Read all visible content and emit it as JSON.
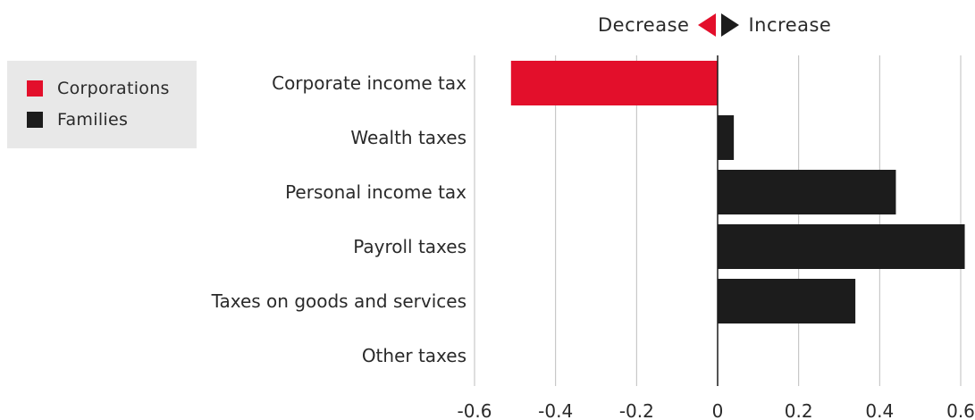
{
  "header": {
    "decrease_label": "Decrease",
    "increase_label": "Increase"
  },
  "colors": {
    "corporations": "#e30f2b",
    "families": "#1c1c1c",
    "grid": "#bdbdbd",
    "legend_bg": "#e8e8e8"
  },
  "legend": [
    {
      "label": "Corporations",
      "color": "#e30f2b"
    },
    {
      "label": "Families",
      "color": "#1c1c1c"
    }
  ],
  "chart_data": {
    "type": "bar",
    "orientation": "horizontal",
    "categories": [
      "Corporate income tax",
      "Wealth taxes",
      "Personal income tax",
      "Payroll taxes",
      "Taxes on goods and services",
      "Other taxes"
    ],
    "values": [
      -0.51,
      0.04,
      0.44,
      0.61,
      0.34,
      0
    ],
    "groups": [
      "Corporations",
      "Families",
      "Families",
      "Families",
      "Families",
      "Families"
    ],
    "xlim": [
      -0.6,
      0.6
    ],
    "xticks": [
      "-0.6",
      "-0.4",
      "-0.2",
      "0",
      "0.2",
      "0.4",
      "0.6"
    ],
    "xtick_values": [
      -0.6,
      -0.4,
      -0.2,
      0,
      0.2,
      0.4,
      0.6
    ],
    "grid": true,
    "legend_position": "top-left"
  }
}
